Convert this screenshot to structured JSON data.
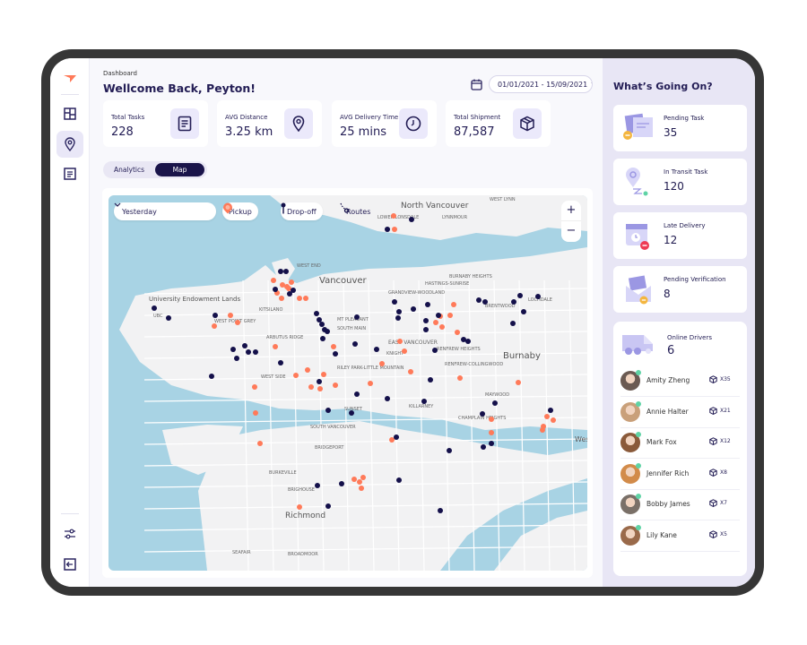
{
  "colors": {
    "accent": "#ff7a59",
    "primary": "#1f1a4f",
    "icon_bg": "#ebe9fb",
    "online": "#5fd3a5",
    "water": "#a8d3e4",
    "land": "#f2f2f3"
  },
  "sidebar": {
    "items": [
      {
        "icon": "dashboard-icon"
      },
      {
        "icon": "map-pin-icon",
        "active": true
      },
      {
        "icon": "document-icon"
      }
    ],
    "bottom": [
      {
        "icon": "sliders-icon"
      },
      {
        "icon": "logout-icon"
      }
    ]
  },
  "header": {
    "breadcrumb": "Dashboard",
    "title": "Wellcome Back, Peyton!",
    "date_range": "01/01/2021 - 15/09/2021"
  },
  "stats": [
    {
      "label": "Total Tasks",
      "value": "228",
      "icon": "document-icon"
    },
    {
      "label": "AVG Distance",
      "value": "3.25 km",
      "icon": "map-pin-icon"
    },
    {
      "label": "AVG Delivery Time",
      "value": "25 mins",
      "icon": "clock-icon"
    },
    {
      "label": "Total Shipment",
      "value": "87,587",
      "icon": "package-icon"
    }
  ],
  "tabs": [
    {
      "label": "Analytics",
      "active": false
    },
    {
      "label": "Map",
      "active": true
    }
  ],
  "map": {
    "period": "Yesterday",
    "filters": {
      "pickup": "Pickup",
      "dropoff": "Drop-off",
      "routes": "Routes"
    },
    "zoom_in": "+",
    "zoom_out": "−",
    "labels": [
      "North Vancouver",
      "LOWER LONSDALE",
      "WEST LYNN",
      "LYNNMOUR",
      "WEST END",
      "Vancouver",
      "HASTINGS-SUNRISE",
      "GRANDVIEW-WOODLAND",
      "BURNABY HEIGHTS",
      "University Endowment Lands",
      "KITSILANO",
      "UBC",
      "WEST POINT GREY",
      "MT PLEASANT",
      "SOUTH MAIN",
      "BRENTWOOD",
      "LOCHDALE",
      "ARBUTUS RIDGE",
      "EAST VANCOUVER",
      "KNIGHT",
      "RENFREW HEIGHTS",
      "RENFREW-COLLINGWOOD",
      "Burnaby",
      "RILEY PARK-LITTLE MOUNTAIN",
      "WEST SIDE",
      "MAYWOOD",
      "KILLARNEY",
      "SUNSET",
      "CHAMPLAIN HEIGHTS",
      "SOUTH VANCOUVER",
      "BRIDGEPORT",
      "BURKEVILLE",
      "BRIGHOUSE",
      "Richmond",
      "SEAFAIR",
      "BROADMOOR",
      "Wes"
    ]
  },
  "panel": {
    "title": "What’s Going On?",
    "cards": [
      {
        "label": "Pending Task",
        "value": "35",
        "icon": "pending-task-illustration"
      },
      {
        "label": "In Transit Task",
        "value": "120",
        "icon": "in-transit-illustration"
      },
      {
        "label": "Late Delivery",
        "value": "12",
        "icon": "late-delivery-illustration"
      },
      {
        "label": "Pending Verification",
        "value": "8",
        "icon": "pending-verification-illustration"
      }
    ],
    "drivers": {
      "label": "Online Drivers",
      "count": "6",
      "list": [
        {
          "name": "Amity Zheng",
          "packages": "X35"
        },
        {
          "name": "Annie Halter",
          "packages": "X21"
        },
        {
          "name": "Mark Fox",
          "packages": "X12"
        },
        {
          "name": "Jennifer Rich",
          "packages": "X8"
        },
        {
          "name": "Bobby James",
          "packages": "X7"
        },
        {
          "name": "Lily Kane",
          "packages": "X5"
        }
      ]
    }
  }
}
